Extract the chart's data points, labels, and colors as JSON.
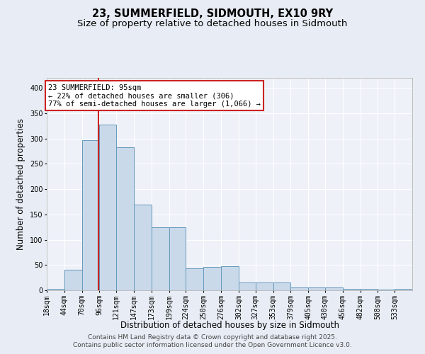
{
  "title": "23, SUMMERFIELD, SIDMOUTH, EX10 9RY",
  "subtitle": "Size of property relative to detached houses in Sidmouth",
  "xlabel": "Distribution of detached houses by size in Sidmouth",
  "ylabel": "Number of detached properties",
  "bin_labels": [
    "18sqm",
    "44sqm",
    "70sqm",
    "96sqm",
    "121sqm",
    "147sqm",
    "173sqm",
    "199sqm",
    "224sqm",
    "250sqm",
    "276sqm",
    "302sqm",
    "327sqm",
    "353sqm",
    "379sqm",
    "405sqm",
    "430sqm",
    "456sqm",
    "482sqm",
    "508sqm",
    "533sqm"
  ],
  "bin_edges": [
    18,
    44,
    70,
    96,
    121,
    147,
    173,
    199,
    224,
    250,
    276,
    302,
    327,
    353,
    379,
    405,
    430,
    456,
    482,
    508,
    533,
    559
  ],
  "bar_values": [
    3,
    40,
    297,
    328,
    283,
    170,
    124,
    124,
    44,
    46,
    48,
    15,
    15,
    16,
    5,
    5,
    5,
    3,
    3,
    2,
    3
  ],
  "bar_color": "#c9d9ea",
  "bar_edge_color": "#6699bb",
  "bar_edge_width": 0.7,
  "red_line_x": 95,
  "red_line_color": "#cc2222",
  "annotation_line1": "23 SUMMERFIELD: 95sqm",
  "annotation_line2": "← 22% of detached houses are smaller (306)",
  "annotation_line3": "77% of semi-detached houses are larger (1,066) →",
  "ylim": [
    0,
    420
  ],
  "yticks": [
    0,
    50,
    100,
    150,
    200,
    250,
    300,
    350,
    400
  ],
  "title_fontsize": 10.5,
  "subtitle_fontsize": 9.5,
  "xlabel_fontsize": 8.5,
  "ylabel_fontsize": 8.5,
  "tick_fontsize": 7,
  "annot_fontsize": 7.5,
  "footnote1": "Contains HM Land Registry data © Crown copyright and database right 2025.",
  "footnote2": "Contains public sector information licensed under the Open Government Licence v3.0.",
  "footnote_fontsize": 6.5,
  "bg_color": "#e8edf5",
  "plot_bg_color": "#eef1f8"
}
